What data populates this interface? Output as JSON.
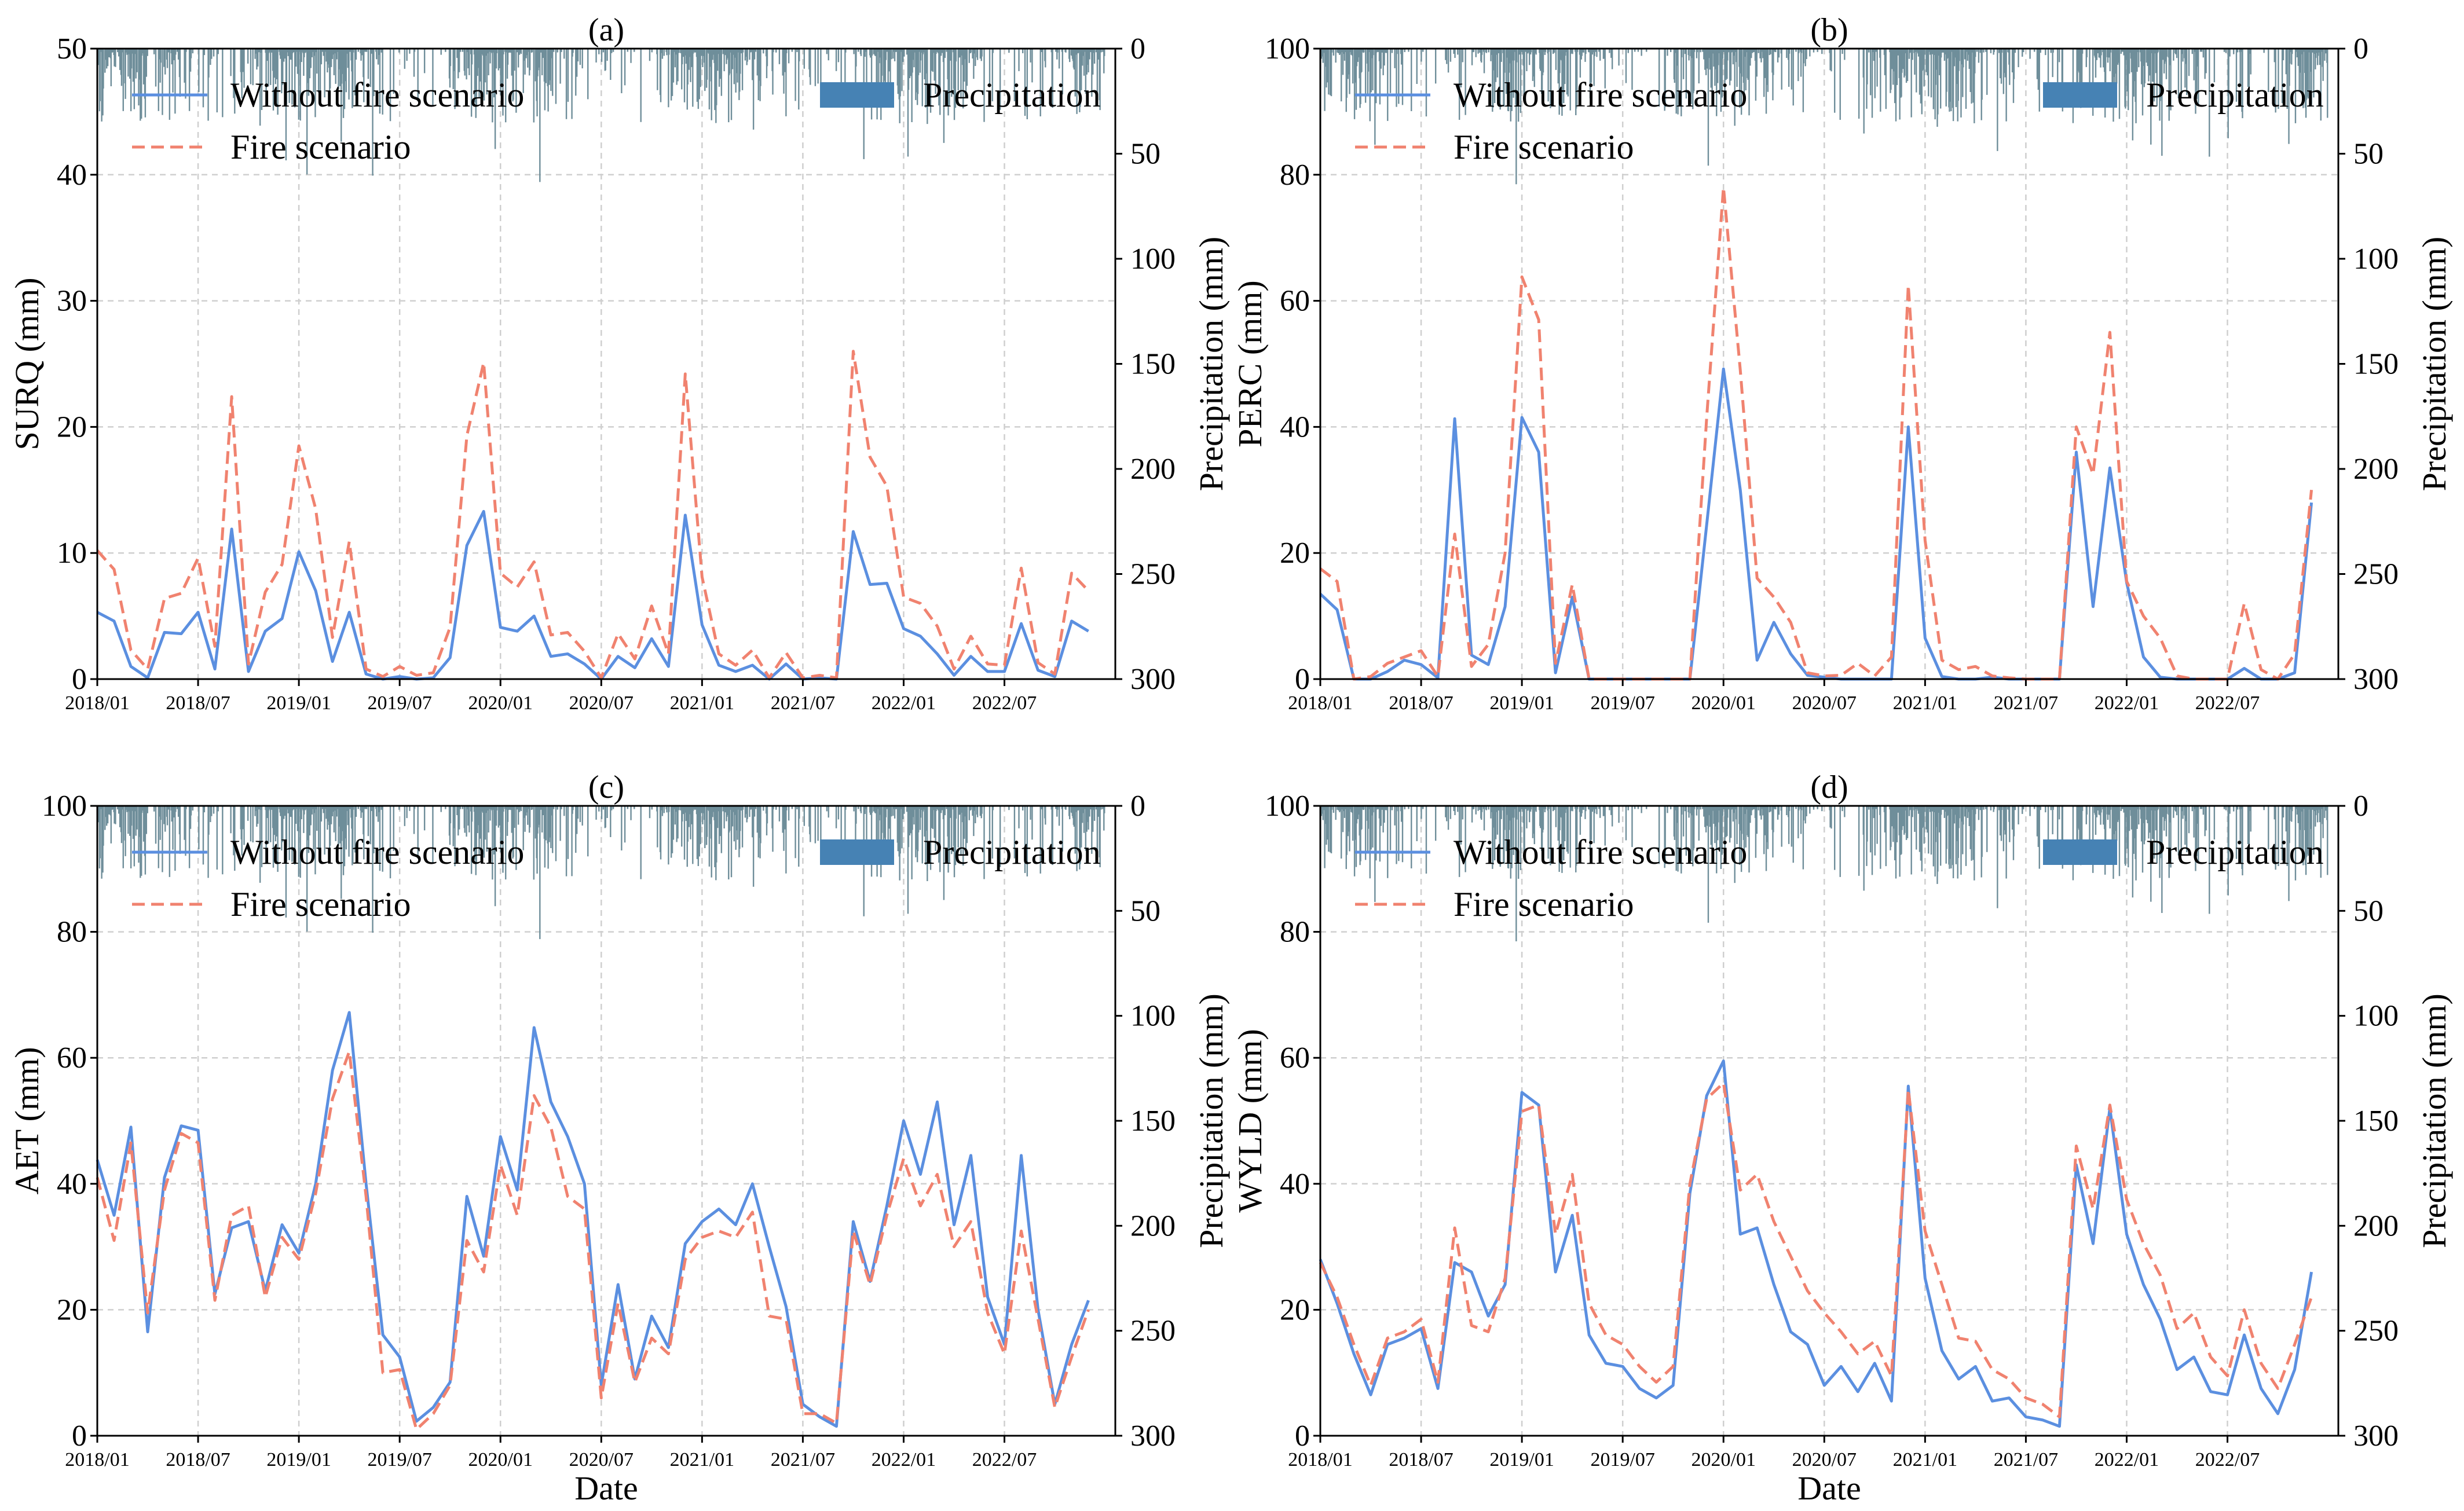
{
  "shared": {
    "x_tick_labels": [
      "2018/01",
      "2018/07",
      "2019/01",
      "2019/07",
      "2020/01",
      "2020/07",
      "2021/01",
      "2021/07",
      "2022/01",
      "2022/07"
    ],
    "x_tick_months": [
      0,
      6,
      12,
      18,
      24,
      30,
      36,
      42,
      48,
      54
    ],
    "precip_ylabel": "Precipitation (mm)",
    "precip_ticks": [
      0,
      50,
      100,
      150,
      200,
      250,
      300
    ],
    "legend": {
      "without_fire": "Without fire scenario",
      "fire": "Fire scenario",
      "precip": "Precipitation"
    },
    "colors": {
      "without_fire": "#5B8FE0",
      "fire": "#F0826F",
      "precip_bars": "#6F8E9A",
      "precip_legend": "#4682B4",
      "grid": "#CFCFCF"
    }
  },
  "chart_data": [
    {
      "type": "line",
      "panel": "(a)",
      "xlabel": "",
      "ylabel": "SURQ (mm)",
      "ylim": [
        0,
        50
      ],
      "yticks": [
        0,
        10,
        20,
        30,
        40,
        50
      ],
      "y2lim": [
        300,
        0
      ],
      "x_start": "2018/01",
      "x_step": "month",
      "series": [
        {
          "name": "Without fire scenario",
          "style": "solid",
          "values": [
            5.3,
            4.6,
            1.0,
            0.1,
            3.7,
            3.6,
            5.3,
            0.8,
            11.9,
            0.6,
            3.8,
            4.8,
            10.1,
            7.0,
            1.4,
            5.3,
            0.4,
            0.0,
            0.2,
            0.0,
            0.1,
            1.7,
            10.6,
            13.3,
            4.1,
            3.8,
            5.0,
            1.8,
            2.0,
            1.2,
            0.0,
            1.8,
            0.9,
            3.2,
            1.0,
            13.0,
            4.3,
            1.1,
            0.6,
            1.1,
            0.0,
            1.2,
            0.0,
            0.1,
            0.0,
            11.7,
            7.5,
            7.6,
            4.0,
            3.4,
            2.0,
            0.3,
            1.8,
            0.6,
            0.6,
            4.4,
            0.7,
            0.2,
            4.6,
            3.8
          ]
        },
        {
          "name": "Fire scenario",
          "style": "dashed",
          "values": [
            10.2,
            8.7,
            2.3,
            0.8,
            6.4,
            6.8,
            9.6,
            2.6,
            22.4,
            1.2,
            6.9,
            9.1,
            18.5,
            13.5,
            3.3,
            10.9,
            0.8,
            0.2,
            1.0,
            0.3,
            0.5,
            4.1,
            19.3,
            25.1,
            8.4,
            7.3,
            9.3,
            3.5,
            3.7,
            2.2,
            0.1,
            3.6,
            1.6,
            5.8,
            2.0,
            24.2,
            8.1,
            2.0,
            1.1,
            2.3,
            0.1,
            2.1,
            0.1,
            0.3,
            0.1,
            26.0,
            17.6,
            15.3,
            6.5,
            6.0,
            4.2,
            0.8,
            3.4,
            1.2,
            1.1,
            8.8,
            1.3,
            0.4,
            8.4,
            7.0
          ]
        }
      ]
    },
    {
      "type": "line",
      "panel": "(b)",
      "xlabel": "",
      "ylabel": "PERC (mm)",
      "ylim": [
        0,
        100
      ],
      "yticks": [
        0,
        20,
        40,
        60,
        80,
        100
      ],
      "y2lim": [
        300,
        0
      ],
      "x_start": "2018/01",
      "x_step": "month",
      "series": [
        {
          "name": "Without fire scenario",
          "style": "solid",
          "values": [
            13.5,
            11.0,
            0.0,
            0.0,
            1.2,
            3.0,
            2.3,
            0.2,
            41.3,
            3.8,
            2.3,
            11.5,
            41.5,
            36.0,
            1.0,
            13.0,
            0.0,
            0.0,
            0.0,
            0.0,
            0.0,
            0.0,
            0.0,
            24.5,
            49.2,
            30.0,
            3.0,
            9.0,
            4.0,
            0.6,
            0.3,
            0.0,
            0.0,
            0.0,
            0.0,
            40.0,
            6.5,
            0.4,
            0.0,
            0.0,
            0.3,
            0.0,
            0.0,
            0.0,
            0.0,
            36.0,
            11.5,
            33.5,
            15.3,
            3.5,
            0.3,
            0.0,
            0.0,
            0.0,
            0.0,
            1.7,
            0.0,
            0.0,
            1.0,
            28.0
          ]
        },
        {
          "name": "Fire scenario",
          "style": "dashed",
          "values": [
            17.5,
            15.5,
            0.0,
            0.4,
            2.5,
            3.5,
            4.5,
            0.4,
            23.0,
            2.0,
            5.5,
            20.0,
            63.8,
            57.0,
            2.5,
            15.0,
            0.0,
            0.0,
            0.0,
            0.0,
            0.0,
            0.0,
            0.0,
            41.5,
            78.0,
            49.0,
            16.0,
            13.0,
            9.0,
            1.0,
            0.5,
            0.6,
            2.5,
            0.5,
            3.5,
            62.5,
            22.0,
            3.0,
            1.5,
            2.0,
            0.5,
            0.2,
            0.0,
            0.0,
            0.0,
            40.0,
            32.5,
            55.0,
            15.5,
            10.0,
            6.5,
            0.5,
            0.0,
            0.0,
            0.0,
            12.0,
            1.5,
            0.0,
            4.0,
            30.0
          ]
        }
      ]
    },
    {
      "type": "line",
      "panel": "(c)",
      "xlabel": "Date",
      "ylabel": "AET (mm)",
      "ylim": [
        0,
        100
      ],
      "yticks": [
        0,
        20,
        40,
        60,
        80,
        100
      ],
      "y2lim": [
        300,
        0
      ],
      "x_start": "2018/01",
      "x_step": "month",
      "series": [
        {
          "name": "Without fire scenario",
          "style": "solid",
          "values": [
            43.8,
            35.0,
            49.0,
            16.5,
            41.0,
            49.2,
            48.5,
            22.5,
            33.0,
            34.0,
            23.0,
            33.5,
            29.0,
            40.0,
            58.0,
            67.2,
            40.0,
            16.0,
            12.5,
            2.3,
            4.5,
            8.5,
            38.0,
            28.5,
            47.5,
            39.0,
            64.8,
            53.0,
            47.5,
            40.0,
            8.0,
            24.0,
            9.0,
            19.0,
            14.0,
            30.5,
            34.0,
            36.0,
            33.5,
            40.0,
            30.0,
            20.5,
            5.0,
            3.0,
            1.5,
            34.0,
            24.5,
            36.5,
            50.0,
            41.5,
            53.0,
            33.5,
            44.5,
            22.0,
            14.5,
            44.5,
            20.0,
            5.0,
            14.5,
            21.5
          ]
        },
        {
          "name": "Fire scenario",
          "style": "dashed",
          "values": [
            41.0,
            31.0,
            46.5,
            19.5,
            39.0,
            48.0,
            46.5,
            21.5,
            35.0,
            36.5,
            22.0,
            31.5,
            28.0,
            38.5,
            53.5,
            61.0,
            38.0,
            10.0,
            10.5,
            1.0,
            3.5,
            8.0,
            31.0,
            26.0,
            43.0,
            35.0,
            54.0,
            49.0,
            38.0,
            36.0,
            6.0,
            21.0,
            8.5,
            15.5,
            13.0,
            28.0,
            31.5,
            32.5,
            31.5,
            35.5,
            19.0,
            18.5,
            3.5,
            3.5,
            2.0,
            32.5,
            24.0,
            35.0,
            44.0,
            36.5,
            41.5,
            30.0,
            34.0,
            19.5,
            13.0,
            32.5,
            18.5,
            4.5,
            12.5,
            20.0
          ]
        }
      ]
    },
    {
      "type": "line",
      "panel": "(d)",
      "xlabel": "Date",
      "ylabel": "WYLD (mm)",
      "ylim": [
        0,
        100
      ],
      "yticks": [
        0,
        20,
        40,
        60,
        80,
        100
      ],
      "y2lim": [
        300,
        0
      ],
      "x_start": "2018/01",
      "x_step": "month",
      "series": [
        {
          "name": "Without fire scenario",
          "style": "solid",
          "values": [
            28.0,
            21.0,
            13.0,
            6.5,
            14.5,
            15.5,
            17.0,
            7.5,
            27.5,
            26.0,
            19.0,
            24.0,
            54.5,
            52.5,
            26.0,
            35.0,
            16.0,
            11.5,
            11.0,
            7.5,
            6.0,
            8.0,
            38.5,
            54.0,
            59.5,
            32.0,
            33.0,
            24.0,
            16.5,
            14.5,
            8.0,
            11.0,
            7.0,
            11.5,
            5.5,
            55.5,
            25.0,
            13.5,
            9.0,
            11.0,
            5.5,
            6.0,
            3.0,
            2.5,
            1.5,
            43.0,
            30.5,
            52.0,
            32.0,
            24.0,
            18.5,
            10.5,
            12.5,
            7.0,
            6.5,
            16.0,
            7.5,
            3.5,
            10.5,
            26.0
          ]
        },
        {
          "name": "Fire scenario",
          "style": "dashed",
          "values": [
            27.5,
            22.0,
            14.5,
            8.0,
            15.5,
            16.5,
            18.5,
            8.5,
            33.0,
            17.5,
            16.5,
            25.0,
            51.5,
            52.5,
            32.0,
            41.5,
            21.0,
            16.0,
            14.5,
            11.0,
            8.5,
            11.0,
            40.0,
            53.5,
            56.0,
            39.0,
            41.5,
            34.0,
            28.5,
            23.0,
            19.5,
            16.5,
            13.0,
            15.0,
            9.5,
            55.0,
            32.5,
            24.0,
            15.5,
            15.0,
            10.5,
            9.0,
            6.0,
            5.0,
            3.0,
            46.0,
            36.0,
            52.5,
            37.5,
            30.5,
            25.5,
            17.0,
            19.5,
            12.5,
            9.5,
            20.0,
            11.5,
            7.5,
            14.5,
            22.0
          ]
        }
      ]
    }
  ]
}
